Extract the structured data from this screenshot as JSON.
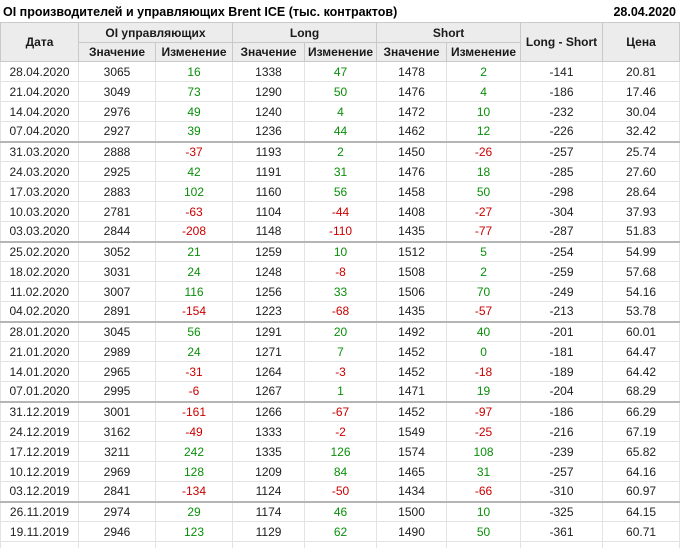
{
  "header": {
    "title": "OI производителей и управляющих Brent ICE (тыс. контрактов)",
    "date": "28.04.2020"
  },
  "colors": {
    "positive": "#0a8f0a",
    "negative": "#cc0000",
    "header_background": "#ececec"
  },
  "table": {
    "col_date": "Дата",
    "groups": [
      {
        "label": "OI управляющих"
      },
      {
        "label": "Long"
      },
      {
        "label": "Short"
      }
    ],
    "sub_value": "Значение",
    "sub_change": "Изменение",
    "col_long_short": "Long - Short",
    "col_price": "Цена",
    "rows": [
      {
        "date": "28.04.2020",
        "oi": 3065,
        "oi_chg": 16,
        "long": 1338,
        "long_chg": 47,
        "short": 1478,
        "short_chg": 2,
        "ls": -141,
        "price": "20.81",
        "month_start": false
      },
      {
        "date": "21.04.2020",
        "oi": 3049,
        "oi_chg": 73,
        "long": 1290,
        "long_chg": 50,
        "short": 1476,
        "short_chg": 4,
        "ls": -186,
        "price": "17.46",
        "month_start": false
      },
      {
        "date": "14.04.2020",
        "oi": 2976,
        "oi_chg": 49,
        "long": 1240,
        "long_chg": 4,
        "short": 1472,
        "short_chg": 10,
        "ls": -232,
        "price": "30.04",
        "month_start": false
      },
      {
        "date": "07.04.2020",
        "oi": 2927,
        "oi_chg": 39,
        "long": 1236,
        "long_chg": 44,
        "short": 1462,
        "short_chg": 12,
        "ls": -226,
        "price": "32.42",
        "month_start": false
      },
      {
        "date": "31.03.2020",
        "oi": 2888,
        "oi_chg": -37,
        "long": 1193,
        "long_chg": 2,
        "short": 1450,
        "short_chg": -26,
        "ls": -257,
        "price": "25.74",
        "month_start": true
      },
      {
        "date": "24.03.2020",
        "oi": 2925,
        "oi_chg": 42,
        "long": 1191,
        "long_chg": 31,
        "short": 1476,
        "short_chg": 18,
        "ls": -285,
        "price": "27.60",
        "month_start": false
      },
      {
        "date": "17.03.2020",
        "oi": 2883,
        "oi_chg": 102,
        "long": 1160,
        "long_chg": 56,
        "short": 1458,
        "short_chg": 50,
        "ls": -298,
        "price": "28.64",
        "month_start": false
      },
      {
        "date": "10.03.2020",
        "oi": 2781,
        "oi_chg": -63,
        "long": 1104,
        "long_chg": -44,
        "short": 1408,
        "short_chg": -27,
        "ls": -304,
        "price": "37.93",
        "month_start": false
      },
      {
        "date": "03.03.2020",
        "oi": 2844,
        "oi_chg": -208,
        "long": 1148,
        "long_chg": -110,
        "short": 1435,
        "short_chg": -77,
        "ls": -287,
        "price": "51.83",
        "month_start": false
      },
      {
        "date": "25.02.2020",
        "oi": 3052,
        "oi_chg": 21,
        "long": 1259,
        "long_chg": 10,
        "short": 1512,
        "short_chg": 5,
        "ls": -254,
        "price": "54.99",
        "month_start": true
      },
      {
        "date": "18.02.2020",
        "oi": 3031,
        "oi_chg": 24,
        "long": 1248,
        "long_chg": -8,
        "short": 1508,
        "short_chg": 2,
        "ls": -259,
        "price": "57.68",
        "month_start": false
      },
      {
        "date": "11.02.2020",
        "oi": 3007,
        "oi_chg": 116,
        "long": 1256,
        "long_chg": 33,
        "short": 1506,
        "short_chg": 70,
        "ls": -249,
        "price": "54.16",
        "month_start": false
      },
      {
        "date": "04.02.2020",
        "oi": 2891,
        "oi_chg": -154,
        "long": 1223,
        "long_chg": -68,
        "short": 1435,
        "short_chg": -57,
        "ls": -213,
        "price": "53.78",
        "month_start": false
      },
      {
        "date": "28.01.2020",
        "oi": 3045,
        "oi_chg": 56,
        "long": 1291,
        "long_chg": 20,
        "short": 1492,
        "short_chg": 40,
        "ls": -201,
        "price": "60.01",
        "month_start": true
      },
      {
        "date": "21.01.2020",
        "oi": 2989,
        "oi_chg": 24,
        "long": 1271,
        "long_chg": 7,
        "short": 1452,
        "short_chg": 0,
        "ls": -181,
        "price": "64.47",
        "month_start": false
      },
      {
        "date": "14.01.2020",
        "oi": 2965,
        "oi_chg": -31,
        "long": 1264,
        "long_chg": -3,
        "short": 1452,
        "short_chg": -18,
        "ls": -189,
        "price": "64.42",
        "month_start": false
      },
      {
        "date": "07.01.2020",
        "oi": 2995,
        "oi_chg": -6,
        "long": 1267,
        "long_chg": 1,
        "short": 1471,
        "short_chg": 19,
        "ls": -204,
        "price": "68.29",
        "month_start": false
      },
      {
        "date": "31.12.2019",
        "oi": 3001,
        "oi_chg": -161,
        "long": 1266,
        "long_chg": -67,
        "short": 1452,
        "short_chg": -97,
        "ls": -186,
        "price": "66.29",
        "month_start": true
      },
      {
        "date": "24.12.2019",
        "oi": 3162,
        "oi_chg": -49,
        "long": 1333,
        "long_chg": -2,
        "short": 1549,
        "short_chg": -25,
        "ls": -216,
        "price": "67.19",
        "month_start": false
      },
      {
        "date": "17.12.2019",
        "oi": 3211,
        "oi_chg": 242,
        "long": 1335,
        "long_chg": 126,
        "short": 1574,
        "short_chg": 108,
        "ls": -239,
        "price": "65.82",
        "month_start": false
      },
      {
        "date": "10.12.2019",
        "oi": 2969,
        "oi_chg": 128,
        "long": 1209,
        "long_chg": 84,
        "short": 1465,
        "short_chg": 31,
        "ls": -257,
        "price": "64.16",
        "month_start": false
      },
      {
        "date": "03.12.2019",
        "oi": 2841,
        "oi_chg": -134,
        "long": 1124,
        "long_chg": -50,
        "short": 1434,
        "short_chg": -66,
        "ls": -310,
        "price": "60.97",
        "month_start": false
      },
      {
        "date": "26.11.2019",
        "oi": 2974,
        "oi_chg": 29,
        "long": 1174,
        "long_chg": 46,
        "short": 1500,
        "short_chg": 10,
        "ls": -325,
        "price": "64.15",
        "month_start": true
      },
      {
        "date": "19.11.2019",
        "oi": 2946,
        "oi_chg": 123,
        "long": 1129,
        "long_chg": 62,
        "short": 1490,
        "short_chg": 50,
        "ls": -361,
        "price": "60.71",
        "month_start": false
      }
    ]
  }
}
